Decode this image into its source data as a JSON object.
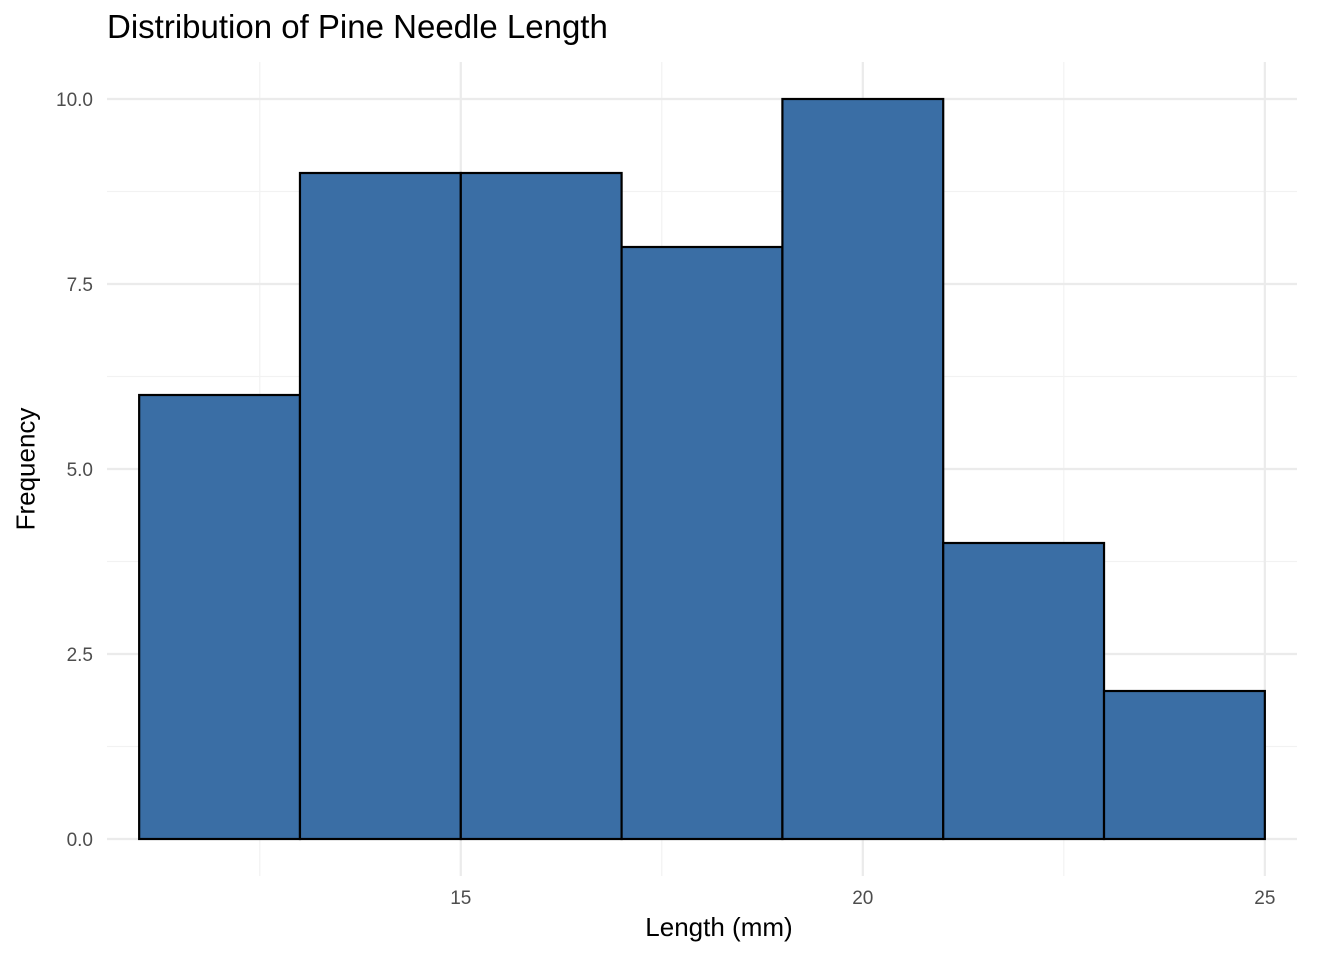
{
  "chart_data": {
    "type": "bar",
    "title": "Distribution of Pine Needle Length",
    "xlabel": "Length (mm)",
    "ylabel": "Frequency",
    "bins": [
      {
        "x0": 11,
        "x1": 13,
        "count": 6
      },
      {
        "x0": 13,
        "x1": 15,
        "count": 9
      },
      {
        "x0": 15,
        "x1": 17,
        "count": 9
      },
      {
        "x0": 17,
        "x1": 19,
        "count": 8
      },
      {
        "x0": 19,
        "x1": 21,
        "count": 10
      },
      {
        "x0": 21,
        "x1": 23,
        "count": 4
      },
      {
        "x0": 23,
        "x1": 25,
        "count": 2
      }
    ],
    "xlim": [
      10.6,
      25.4
    ],
    "ylim": [
      -0.5,
      10.5
    ],
    "xticks": [
      15,
      20,
      25
    ],
    "xtick_labels": [
      "15",
      "20",
      "25"
    ],
    "xminor": [
      12.5,
      17.5,
      22.5
    ],
    "yticks": [
      0,
      2.5,
      5,
      7.5,
      10
    ],
    "ytick_labels": [
      "0.0",
      "2.5",
      "5.0",
      "7.5",
      "10.0"
    ],
    "yminor": [
      1.25,
      3.75,
      6.25,
      8.75
    ],
    "grid": true,
    "colors": {
      "fill": "#3A6EA5",
      "outline": "#000000",
      "grid_major": "#EBEBEB",
      "grid_minor": "#F2F2F2",
      "tick_text": "#4D4D4D"
    }
  }
}
